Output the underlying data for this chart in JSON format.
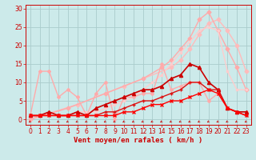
{
  "background_color": "#cceaea",
  "grid_color": "#aacccc",
  "xlabel": "Vent moyen/en rafales ( km/h )",
  "xlim": [
    -0.5,
    23.5
  ],
  "ylim": [
    -1.5,
    31
  ],
  "xticks": [
    0,
    1,
    2,
    3,
    4,
    5,
    6,
    7,
    8,
    9,
    10,
    11,
    12,
    13,
    14,
    15,
    16,
    17,
    18,
    19,
    20,
    21,
    22,
    23
  ],
  "yticks": [
    0,
    5,
    10,
    15,
    20,
    25,
    30
  ],
  "series": [
    {
      "x": [
        0,
        5,
        10,
        15,
        16,
        17,
        18,
        19,
        20,
        21,
        22,
        23
      ],
      "y": [
        0,
        4,
        9,
        14,
        16,
        19,
        23,
        26,
        27,
        24,
        20,
        13
      ],
      "color": "#ffbbbb",
      "lw": 1.0,
      "marker": "D",
      "ms": 2.5
    },
    {
      "x": [
        0,
        4,
        8,
        12,
        14,
        15,
        16,
        17,
        18,
        19,
        20,
        21,
        22,
        23
      ],
      "y": [
        0,
        3,
        7,
        11,
        14,
        16,
        19,
        22,
        27,
        29,
        24,
        19,
        14,
        8
      ],
      "color": "#ffaaaa",
      "lw": 1.0,
      "marker": "D",
      "ms": 2.5
    },
    {
      "x": [
        0,
        1,
        2,
        3,
        4,
        5,
        6,
        7,
        8,
        9,
        10,
        11,
        12,
        13,
        14,
        15,
        16,
        17,
        18,
        19,
        20,
        21,
        22,
        23
      ],
      "y": [
        1,
        1,
        1,
        1,
        1,
        2,
        2,
        2,
        3,
        4,
        5,
        6,
        8,
        10,
        12,
        15,
        18,
        21,
        24,
        25,
        24,
        13,
        8,
        8
      ],
      "color": "#ffcccc",
      "lw": 1.0,
      "marker": "s",
      "ms": 2.0
    },
    {
      "x": [
        0,
        1,
        2,
        3,
        4,
        5,
        6,
        7,
        8,
        9,
        10,
        11,
        12,
        13,
        14,
        15,
        16,
        17,
        18,
        19,
        20,
        21,
        22,
        23
      ],
      "y": [
        1,
        13,
        13,
        6,
        8,
        6,
        1,
        7,
        10,
        0,
        6,
        6,
        7,
        7,
        15,
        8,
        9,
        10,
        10,
        5,
        7,
        3,
        2,
        2
      ],
      "color": "#ffaaaa",
      "lw": 1.0,
      "marker": "D",
      "ms": 2.0
    },
    {
      "x": [
        0,
        1,
        2,
        3,
        4,
        5,
        6,
        7,
        8,
        9,
        10,
        11,
        12,
        13,
        14,
        15,
        16,
        17,
        18,
        19,
        20,
        21,
        22,
        23
      ],
      "y": [
        1,
        1,
        2,
        1,
        1,
        2,
        1,
        3,
        4,
        5,
        6,
        7,
        8,
        8,
        9,
        11,
        12,
        15,
        14,
        10,
        8,
        3,
        2,
        2
      ],
      "color": "#cc0000",
      "lw": 1.2,
      "marker": "^",
      "ms": 3
    },
    {
      "x": [
        0,
        1,
        2,
        3,
        4,
        5,
        6,
        7,
        8,
        9,
        10,
        11,
        12,
        13,
        14,
        15,
        16,
        17,
        18,
        19,
        20,
        21,
        22,
        23
      ],
      "y": [
        1,
        1,
        1,
        1,
        1,
        1,
        1,
        1,
        2,
        2,
        3,
        4,
        5,
        5,
        6,
        7,
        8,
        10,
        10,
        8,
        8,
        3,
        2,
        1
      ],
      "color": "#dd1111",
      "lw": 1.0,
      "marker": "+",
      "ms": 3
    },
    {
      "x": [
        0,
        1,
        2,
        3,
        4,
        5,
        6,
        7,
        8,
        9,
        10,
        11,
        12,
        13,
        14,
        15,
        16,
        17,
        18,
        19,
        20,
        21,
        22,
        23
      ],
      "y": [
        1,
        1,
        1,
        1,
        1,
        1,
        1,
        1,
        1,
        1,
        2,
        2,
        3,
        4,
        4,
        5,
        5,
        6,
        7,
        8,
        7,
        3,
        2,
        1
      ],
      "color": "#ff0000",
      "lw": 1.0,
      "marker": "x",
      "ms": 3
    }
  ],
  "tick_label_fontsize": 5.5,
  "xlabel_fontsize": 6.5,
  "axis_label_color": "#cc0000",
  "arrow_color": "#cc0000"
}
